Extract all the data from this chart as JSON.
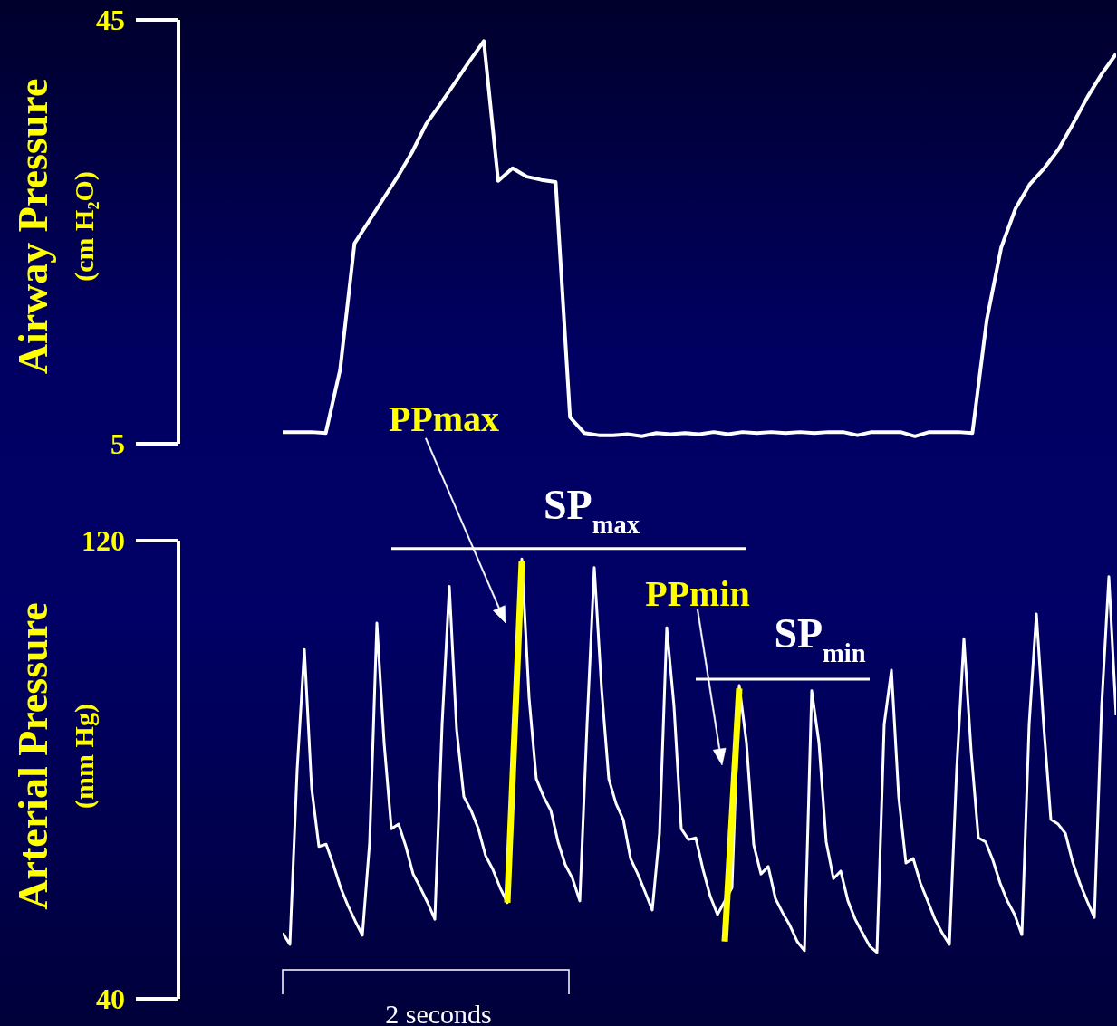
{
  "chart_data": [
    {
      "type": "line",
      "ylabel": "Airway Pressure\n(cm H₂O)",
      "ylim": [
        5,
        45
      ],
      "yticks": [
        5,
        45
      ],
      "tick_labels": "y",
      "categories": [
        null,
        null,
        null,
        null,
        null,
        null,
        null,
        null,
        null,
        null,
        null,
        null,
        null,
        null,
        null,
        null,
        null,
        null,
        null,
        null,
        null,
        null,
        null,
        null,
        null,
        null,
        null,
        null,
        null,
        null,
        null,
        null,
        null,
        null,
        null,
        null,
        null,
        null,
        null,
        null,
        null,
        null,
        null,
        null,
        null,
        null,
        null,
        null,
        null,
        null,
        null,
        null,
        null,
        null,
        null,
        null,
        null,
        null,
        null
      ],
      "series": [
        {
          "color": "#ffffff",
          "values": [
            6.1,
            6.1,
            6.1,
            6.0,
            12.0,
            23.9,
            26.0,
            28.1,
            30.2,
            32.5,
            35.2,
            37.1,
            39.1,
            41.1,
            43.0,
            29.8,
            31.0,
            30.2,
            29.9,
            29.7,
            7.5,
            6.0,
            5.8,
            5.8,
            5.9,
            5.7,
            6.0,
            5.9,
            6.0,
            5.9,
            6.1,
            5.9,
            6.1,
            6.0,
            6.1,
            6.0,
            6.1,
            6.0,
            6.1,
            6.1,
            5.8,
            6.1,
            6.1,
            6.1,
            5.7,
            6.1,
            6.1,
            6.1,
            6.0,
            16.7,
            23.5,
            27.2,
            29.5,
            31.0,
            32.8,
            35.2,
            37.7,
            39.9,
            41.8
          ]
        }
      ]
    },
    {
      "type": "line",
      "ylabel": "Arterial Pressure\n(mm Hg)",
      "ylim": [
        40,
        120
      ],
      "yticks": [
        40,
        120
      ],
      "tick_labels": "y",
      "annotations": [
        "PPmax",
        "SP$_{max}$",
        "PPmin",
        "SP$_{min}$",
        "2 seconds"
      ],
      "categories": [
        null,
        null,
        null,
        null,
        null,
        null,
        null,
        null,
        null,
        null,
        null,
        null,
        null,
        null,
        null,
        null,
        null,
        null,
        null,
        null,
        null,
        null,
        null,
        null,
        null,
        null,
        null,
        null,
        null,
        null,
        null,
        null,
        null,
        null,
        null,
        null,
        null,
        null,
        null,
        null,
        null,
        null,
        null,
        null,
        null,
        null,
        null,
        null,
        null,
        null,
        null,
        null,
        null,
        null,
        null,
        null,
        null,
        null,
        null,
        null,
        null,
        null,
        null,
        null,
        null,
        null,
        null,
        null,
        null,
        null,
        null,
        null,
        null,
        null,
        null,
        null,
        null,
        null,
        null,
        null,
        null,
        null,
        null,
        null,
        null,
        null,
        null,
        null,
        null,
        null,
        null,
        null,
        null,
        null,
        null,
        null,
        null,
        null,
        null,
        null,
        null,
        null,
        null,
        null,
        null,
        null,
        null,
        null,
        null,
        null,
        null,
        null,
        null,
        null,
        null,
        null
      ],
      "series": [
        {
          "color": "#ffffff",
          "values": [
            51.5,
            49.5,
            80.0,
            101.0,
            76.8,
            66.6,
            67.0,
            63.4,
            59.4,
            56.3,
            53.6,
            51.1,
            67.3,
            105.6,
            84.7,
            69.7,
            70.5,
            66.6,
            61.8,
            59.4,
            56.8,
            53.9,
            87.9,
            112.0,
            87.1,
            75.3,
            72.9,
            69.7,
            65.0,
            62.6,
            59.4,
            56.8,
            null,
            116.8,
            92.6,
            78.4,
            75.3,
            72.9,
            67.4,
            63.4,
            61.0,
            57.1,
            87.9,
            115.3,
            94.2,
            78.4,
            74.1,
            71.3,
            64.5,
            61.8,
            58.7,
            55.5,
            68.9,
            104.8,
            91.1,
            69.7,
            67.8,
            68.1,
            62.6,
            57.9,
            54.7,
            null,
            59.4,
            94.7,
            84.7,
            66.9,
            61.8,
            63.1,
            57.5,
            55.0,
            52.8,
            50.0,
            48.4,
            93.8,
            84.7,
            67.4,
            61.0,
            62.3,
            57.1,
            53.9,
            51.5,
            49.2,
            48.1,
            87.9,
            97.4,
            75.3,
            63.7,
            64.5,
            60.2,
            57.1,
            53.9,
            51.5,
            49.5,
            80.0,
            102.9,
            83.2,
            68.1,
            67.4,
            64.2,
            60.2,
            57.1,
            54.7,
            51.2,
            87.9,
            107.2,
            87.9,
            71.3,
            70.5,
            68.9,
            63.9,
            60.2,
            57.1,
            54.2,
            91.1,
            113.7,
            89.5
          ]
        },
        {
          "color": "#ffff00",
          "values": [
            null,
            null,
            null,
            null,
            null,
            null,
            null,
            null,
            null,
            null,
            null,
            null,
            null,
            null,
            null,
            null,
            null,
            null,
            null,
            null,
            null,
            null,
            null,
            null,
            null,
            null,
            null,
            null,
            null,
            null,
            null,
            56.8,
            null,
            116.4,
            null,
            null,
            null,
            null,
            null,
            null,
            null,
            null,
            null,
            null,
            null,
            null,
            null,
            null,
            null,
            null,
            null,
            null,
            null,
            null,
            null,
            null,
            null,
            null,
            null,
            null,
            null,
            null,
            null,
            null,
            null,
            null,
            null,
            null,
            null,
            null,
            null,
            null,
            null,
            null,
            null,
            null,
            null,
            null,
            null,
            null,
            null,
            null,
            null,
            null,
            null,
            null,
            null,
            null,
            null,
            null,
            null,
            null,
            null,
            null,
            null,
            null,
            null,
            null,
            null,
            null,
            null,
            null,
            null,
            null,
            null,
            null,
            null,
            null,
            null,
            null,
            null,
            null,
            null,
            null,
            null,
            null
          ]
        },
        {
          "color": "#ffff00",
          "values": [
            null,
            null,
            null,
            null,
            null,
            null,
            null,
            null,
            null,
            null,
            null,
            null,
            null,
            null,
            null,
            null,
            null,
            null,
            null,
            null,
            null,
            null,
            null,
            null,
            null,
            null,
            null,
            null,
            null,
            null,
            null,
            null,
            null,
            null,
            null,
            null,
            null,
            null,
            null,
            null,
            null,
            null,
            null,
            null,
            null,
            null,
            null,
            null,
            null,
            null,
            null,
            null,
            null,
            null,
            null,
            null,
            null,
            null,
            null,
            null,
            null,
            50.0,
            null,
            94.2,
            null,
            null,
            null,
            null,
            null,
            null,
            null,
            null,
            null,
            null,
            null,
            null,
            null,
            null,
            null,
            null,
            null,
            null,
            null,
            null,
            null,
            null,
            null,
            null,
            null,
            null,
            null,
            null,
            null,
            null,
            null,
            null,
            null,
            null,
            null,
            null,
            null,
            null,
            null,
            null,
            null,
            null,
            null,
            null,
            null,
            null,
            null,
            null,
            null,
            null,
            null,
            null
          ]
        },
        {
          "color": "#ffffff",
          "values": [
            null,
            null,
            null,
            null,
            null,
            null,
            null,
            null,
            null,
            null,
            null,
            null,
            null,
            null,
            null,
            118.6,
            null,
            null,
            null,
            null,
            null,
            null,
            null,
            null,
            null,
            null,
            null,
            null,
            null,
            null,
            null,
            null,
            null,
            null,
            null,
            null,
            null,
            null,
            null,
            null,
            null,
            null,
            null,
            null,
            null,
            null,
            null,
            null,
            null,
            null,
            null,
            null,
            null,
            null,
            null,
            null,
            null,
            null,
            null,
            null,
            null,
            null,
            null,
            null,
            118.6,
            null,
            null,
            null,
            null,
            null,
            null,
            null,
            null,
            null,
            null,
            null,
            null,
            null,
            null,
            null,
            null,
            null,
            null,
            null,
            null,
            null,
            null,
            null,
            null,
            null,
            null,
            null,
            null,
            null,
            null,
            null,
            null,
            null,
            null,
            null,
            null,
            null,
            null,
            null,
            null,
            null,
            null,
            null,
            null,
            null,
            null,
            null,
            null,
            null,
            null,
            null
          ]
        },
        {
          "color": "#ffffff",
          "values": [
            null,
            null,
            null,
            null,
            null,
            null,
            null,
            null,
            null,
            null,
            null,
            null,
            null,
            null,
            null,
            null,
            null,
            null,
            null,
            null,
            null,
            null,
            null,
            null,
            null,
            null,
            null,
            null,
            null,
            null,
            null,
            null,
            null,
            null,
            null,
            null,
            null,
            null,
            null,
            null,
            null,
            null,
            null,
            null,
            null,
            null,
            null,
            null,
            null,
            null,
            null,
            null,
            null,
            null,
            null,
            null,
            null,
            95.8,
            null,
            null,
            null,
            null,
            null,
            null,
            null,
            null,
            null,
            null,
            null,
            null,
            null,
            null,
            null,
            null,
            null,
            null,
            null,
            null,
            null,
            null,
            null,
            95.8,
            null,
            null,
            null,
            null,
            null,
            null,
            null,
            null,
            null,
            null,
            null,
            null,
            null,
            null,
            null,
            null,
            null,
            null,
            null,
            null,
            null,
            null,
            null,
            null,
            null,
            null,
            null,
            null,
            null,
            null,
            null,
            null,
            null,
            null
          ]
        }
      ]
    }
  ]
}
